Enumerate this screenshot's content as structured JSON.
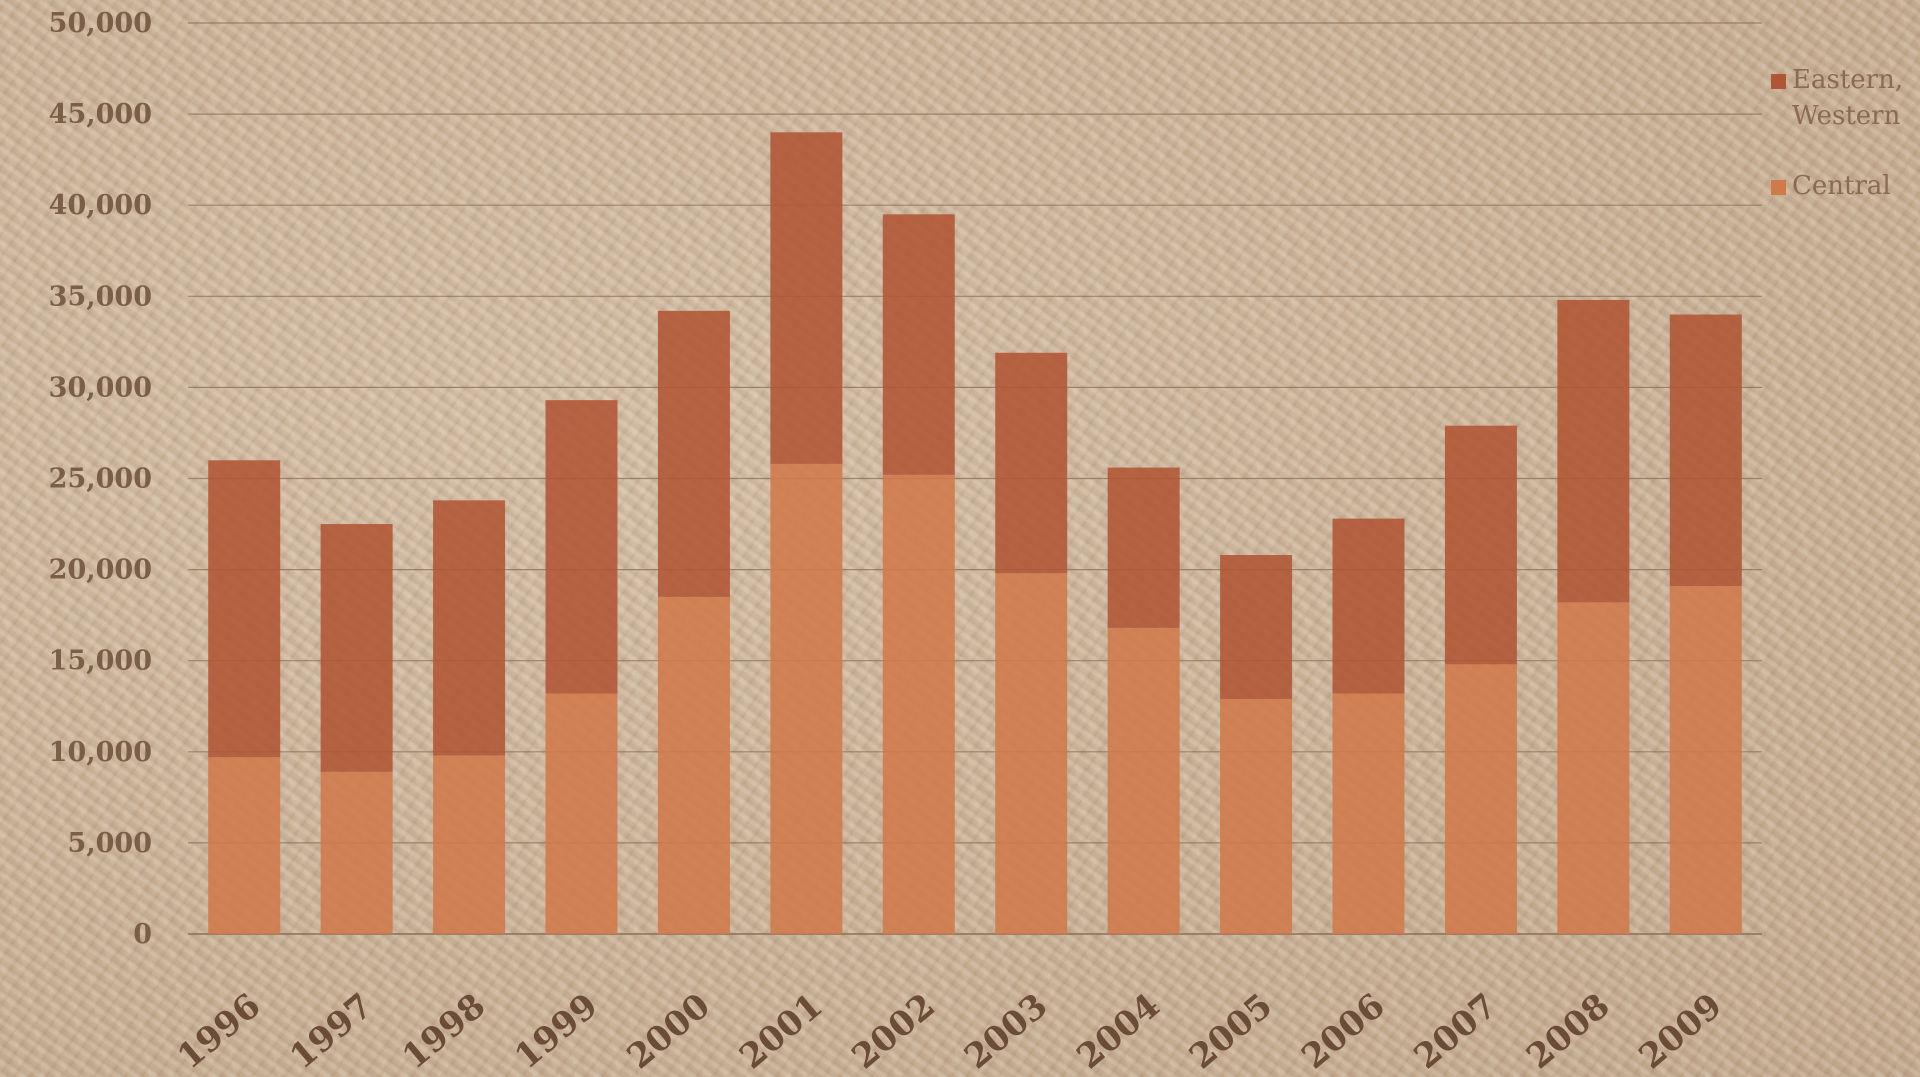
{
  "chart_data": {
    "type": "bar",
    "stacked": true,
    "categories": [
      "1996",
      "1997",
      "1998",
      "1999",
      "2000",
      "2001",
      "2002",
      "2003",
      "2004",
      "2005",
      "2006",
      "2007",
      "2008",
      "2009"
    ],
    "series": [
      {
        "name": "Central",
        "color": "#cf7a4b",
        "values": [
          9700,
          8900,
          9800,
          13200,
          18500,
          25800,
          25200,
          19800,
          16800,
          12900,
          13200,
          14800,
          18200,
          19100
        ]
      },
      {
        "name": "Eastern, Western",
        "color": "#b05535",
        "values": [
          16300,
          13600,
          14000,
          16100,
          15700,
          18200,
          14300,
          12100,
          8800,
          7900,
          9600,
          13100,
          16600,
          14900
        ]
      }
    ],
    "ylim": [
      0,
      50000
    ],
    "yticks": [
      0,
      5000,
      10000,
      15000,
      20000,
      25000,
      30000,
      35000,
      40000,
      45000,
      50000
    ],
    "ytick_labels": [
      "0",
      "5,000",
      "10,000",
      "15,000",
      "20,000",
      "25,000",
      "30,000",
      "35,000",
      "40,000",
      "45,000",
      "50,000"
    ],
    "grid": true,
    "legend_position": "right"
  }
}
